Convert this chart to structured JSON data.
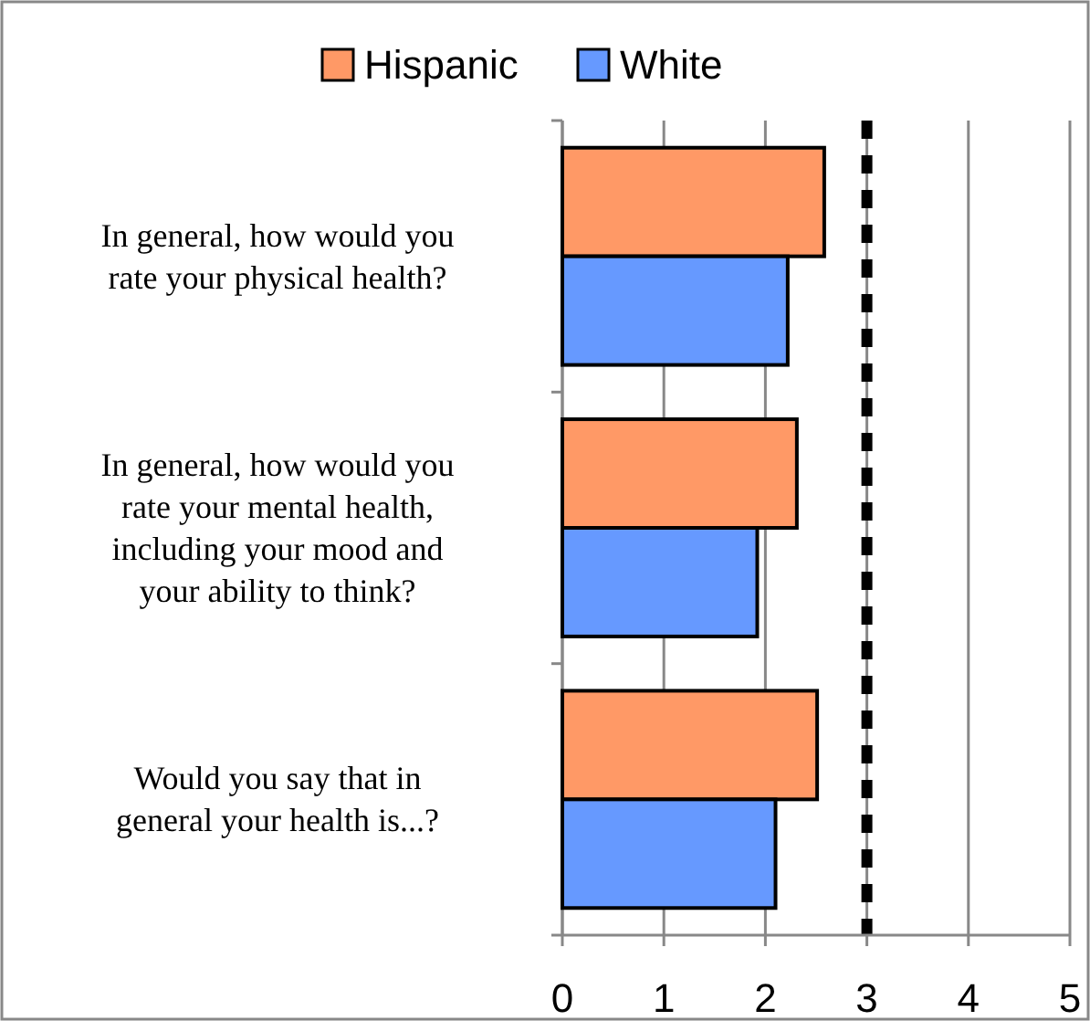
{
  "chart_data": {
    "type": "bar",
    "orientation": "horizontal",
    "categories": [
      "In general, how would you rate your physical health?",
      "In general, how would you rate your mental health, including your mood and your ability to think?",
      "Would you say that in general your health is...?"
    ],
    "series": [
      {
        "name": "Hispanic",
        "color": "#ff9966",
        "values": [
          2.58,
          2.31,
          2.51
        ]
      },
      {
        "name": "White",
        "color": "#6699ff",
        "values": [
          2.22,
          1.92,
          2.1
        ]
      }
    ],
    "xlim": [
      0,
      5
    ],
    "xticks": [
      0,
      1,
      2,
      3,
      4,
      5
    ],
    "grid": "x",
    "legend": "top",
    "ref_lines": [
      {
        "axis": "x",
        "value": 3,
        "color": "#000000",
        "line_style": "dashed"
      }
    ]
  }
}
